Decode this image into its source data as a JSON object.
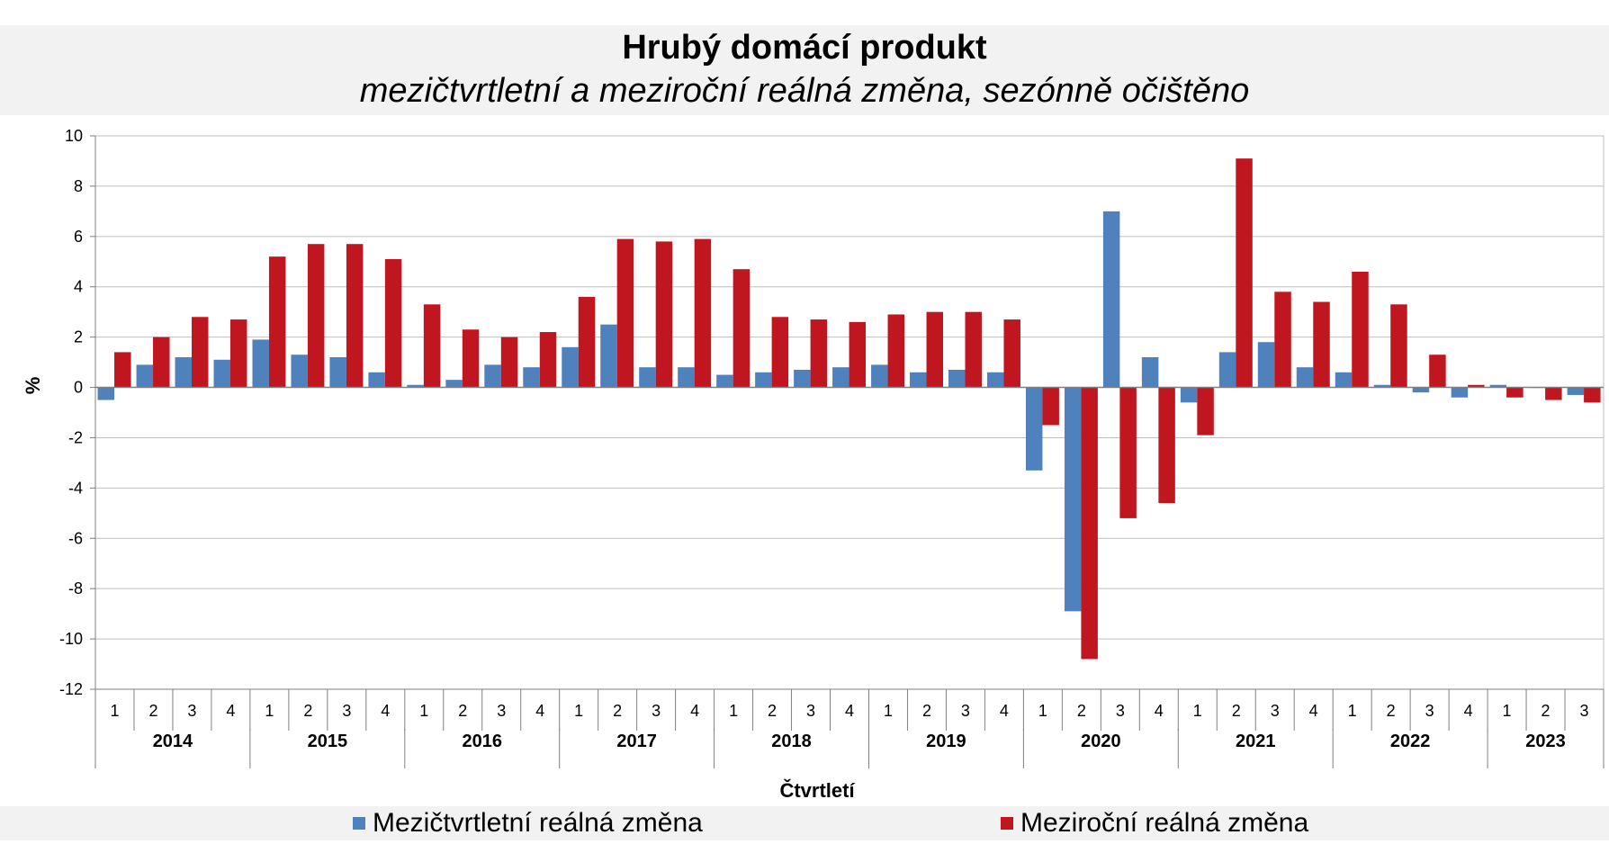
{
  "chart_data": {
    "type": "bar",
    "title": "Hrubý domácí produkt",
    "subtitle": "mezičtvrtletní a meziroční reálná změna, sezónně očištěno",
    "ylabel": "%",
    "xlabel": "Čtvrtletí",
    "ylim": [
      -12,
      10
    ],
    "yticks": [
      10,
      8,
      6,
      4,
      2,
      0,
      -2,
      -4,
      -6,
      -8,
      -10,
      -12
    ],
    "grid": true,
    "legend_position": "bottom",
    "years": [
      "2014",
      "2015",
      "2016",
      "2017",
      "2018",
      "2019",
      "2020",
      "2021",
      "2022",
      "2023"
    ],
    "quarters_per_year": [
      4,
      4,
      4,
      4,
      4,
      4,
      4,
      4,
      4,
      3
    ],
    "categories": [
      "1",
      "2",
      "3",
      "4",
      "1",
      "2",
      "3",
      "4",
      "1",
      "2",
      "3",
      "4",
      "1",
      "2",
      "3",
      "4",
      "1",
      "2",
      "3",
      "4",
      "1",
      "2",
      "3",
      "4",
      "1",
      "2",
      "3",
      "4",
      "1",
      "2",
      "3",
      "4",
      "1",
      "2",
      "3",
      "4",
      "1",
      "2",
      "3"
    ],
    "series": [
      {
        "name": "Mezičtvrtletní reálná změna",
        "color": "#4f81bd",
        "values": [
          -0.5,
          0.9,
          1.2,
          1.1,
          1.9,
          1.3,
          1.2,
          0.6,
          0.1,
          0.3,
          0.9,
          0.8,
          1.6,
          2.5,
          0.8,
          0.8,
          0.5,
          0.6,
          0.7,
          0.8,
          0.9,
          0.6,
          0.7,
          0.6,
          -3.3,
          -8.9,
          7.0,
          1.2,
          -0.6,
          1.4,
          1.8,
          0.8,
          0.6,
          0.1,
          -0.2,
          -0.4,
          0.1,
          0.0,
          -0.3
        ]
      },
      {
        "name": "Meziroční reálná změna",
        "color": "#c0161f",
        "values": [
          1.4,
          2.0,
          2.8,
          2.7,
          5.2,
          5.7,
          5.7,
          5.1,
          3.3,
          2.3,
          2.0,
          2.2,
          3.6,
          5.9,
          5.8,
          5.9,
          4.7,
          2.8,
          2.7,
          2.6,
          2.9,
          3.0,
          3.0,
          2.7,
          -1.5,
          -10.8,
          -5.2,
          -4.6,
          -1.9,
          9.1,
          3.8,
          3.4,
          4.6,
          3.3,
          1.3,
          0.1,
          -0.4,
          -0.5,
          -0.6
        ]
      }
    ]
  }
}
